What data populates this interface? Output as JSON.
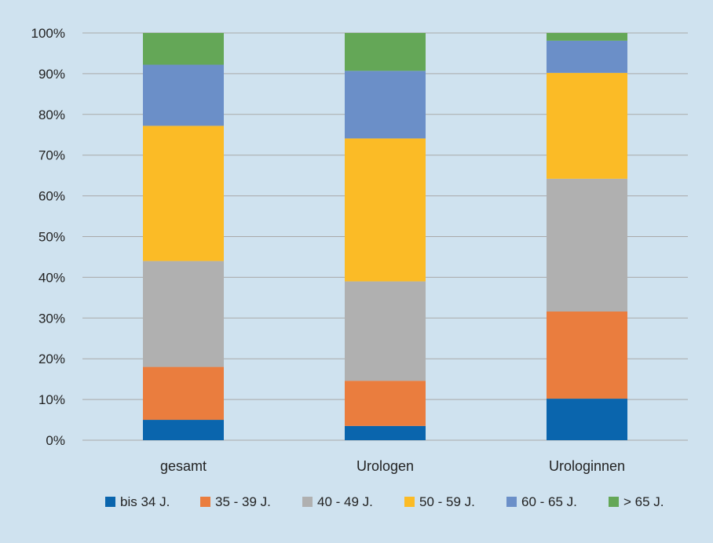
{
  "chart_data": {
    "type": "bar",
    "stacked": true,
    "title": "",
    "xlabel": "",
    "ylabel": "",
    "ylim": [
      0,
      100
    ],
    "yticks": [
      "0%",
      "10%",
      "20%",
      "30%",
      "40%",
      "50%",
      "60%",
      "70%",
      "80%",
      "90%",
      "100%"
    ],
    "grid": true,
    "legend_position": "bottom",
    "categories": [
      "gesamt",
      "Urologen",
      "Urologinnen"
    ],
    "series": [
      {
        "name": "bis 34 J.",
        "color": "#0a65ad",
        "values": [
          5,
          3.5,
          10.2
        ]
      },
      {
        "name": "35 - 39 J.",
        "color": "#ea7d3e",
        "values": [
          13,
          11.1,
          21.4
        ]
      },
      {
        "name": "40 - 49 J.",
        "color": "#b0b0b0",
        "values": [
          26,
          24.4,
          32.6
        ]
      },
      {
        "name": "50 - 59 J.",
        "color": "#fbbb26",
        "values": [
          33.2,
          35.1,
          26
        ]
      },
      {
        "name": "60 - 65 J.",
        "color": "#6b8fc8",
        "values": [
          15,
          16.6,
          7.9
        ]
      },
      {
        "name": "> 65 J.",
        "color": "#64a757",
        "values": [
          7.8,
          9.3,
          1.9
        ]
      }
    ]
  }
}
